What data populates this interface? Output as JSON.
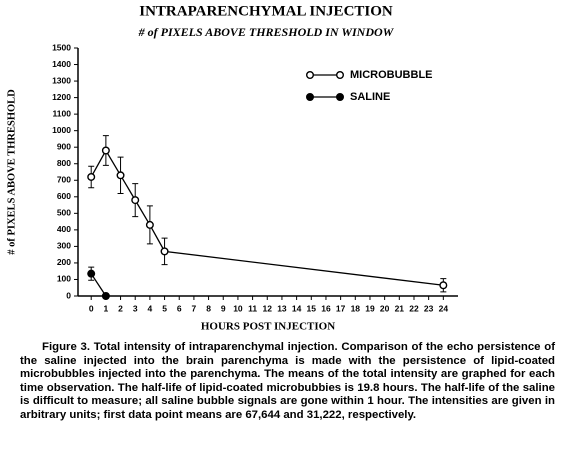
{
  "chart_data": {
    "type": "line",
    "title": "INTRAPARENCHYMAL INJECTION",
    "subtitle": "# of PIXELS ABOVE THRESHOLD IN WINDOW",
    "x_label": "HOURS POST INJECTION",
    "y_label": "# of PIXELS ABOVE THRESHOLD",
    "xlim": [
      -0.9,
      25
    ],
    "ylim": [
      0,
      1500
    ],
    "xticks": [
      0,
      1,
      2,
      3,
      4,
      5,
      6,
      7,
      8,
      9,
      10,
      11,
      12,
      13,
      14,
      15,
      16,
      17,
      18,
      19,
      20,
      21,
      22,
      23,
      24
    ],
    "yticks": [
      0,
      100,
      200,
      300,
      400,
      500,
      600,
      700,
      800,
      900,
      1000,
      1100,
      1200,
      1300,
      1400,
      1500
    ],
    "legend": "upper right",
    "series": [
      {
        "name": "MICROBUBBLE",
        "color": "#000000",
        "marker": "open",
        "x": [
          0,
          1,
          2,
          3,
          4,
          5,
          24
        ],
        "values": [
          720,
          880,
          730,
          580,
          430,
          270,
          65
        ],
        "errors": [
          65,
          90,
          110,
          100,
          115,
          80,
          40
        ]
      },
      {
        "name": "SALINE",
        "color": "#000000",
        "marker": "filled",
        "x": [
          0,
          1
        ],
        "values": [
          135,
          0
        ],
        "errors": [
          40,
          0
        ]
      }
    ]
  },
  "caption": "Figure 3.  Total intensity of intraparenchymal injection. Comparison of the echo persistence of the saline injected into the brain parenchyma is made with the persistence of lipid-coated microbubbles injected into the parenchyma.  The means of the total intensity are graphed for each time observation.  The half-life of lipid-coated microbubbies is 19.8 hours.  The half-life of the saline is difficult to measure; all saline bubble signals are gone within 1 hour.  The intensities are given in arbitrary units; first data point means are 67,644 and 31,222, respectively."
}
